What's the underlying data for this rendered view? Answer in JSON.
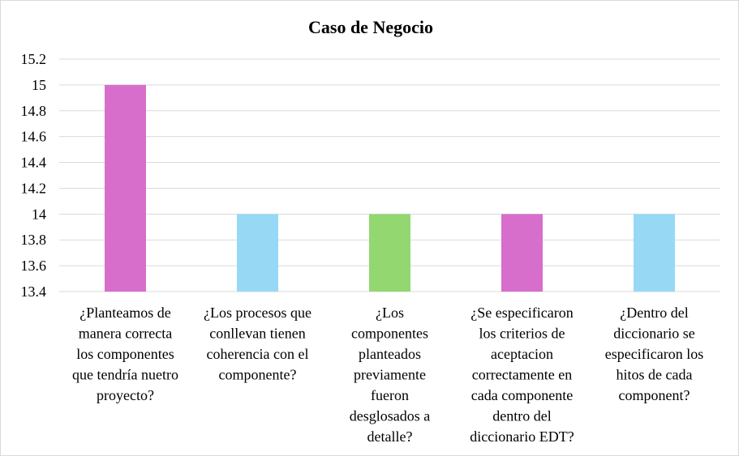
{
  "chart_data": {
    "type": "bar",
    "title": "Caso de Negocio",
    "xlabel": "",
    "ylabel": "",
    "ylim": [
      13.4,
      15.2
    ],
    "yticks": [
      13.4,
      13.6,
      13.8,
      14,
      14.2,
      14.4,
      14.6,
      14.8,
      15,
      15.2
    ],
    "ytick_labels": [
      "13.4",
      "13.6",
      "13.8",
      "14",
      "14.2",
      "14.4",
      "14.6",
      "14.8",
      "15",
      "15.2"
    ],
    "grid": true,
    "legend": "none",
    "categories": [
      [
        "¿Planteamos de",
        "manera correcta",
        "los componentes",
        "que tendría nuetro",
        "proyecto?"
      ],
      [
        "¿Los procesos que",
        "conllevan tienen",
        "coherencia con el",
        "componente?"
      ],
      [
        "¿Los",
        "componentes",
        "planteados",
        "previamente",
        "fueron",
        "desglosados a",
        "detalle?"
      ],
      [
        "¿Se especificaron",
        "los criterios de",
        "aceptacion",
        "correctamente en",
        "cada componente",
        "dentro del",
        "diccionario EDT?"
      ],
      [
        "¿Dentro del",
        "diccionario se",
        "especificaron los",
        "hitos de cada",
        "component?"
      ]
    ],
    "values": [
      15,
      14,
      14,
      14,
      14
    ],
    "bar_colors": [
      "#d86ecc",
      "#97d9f5",
      "#92d76f",
      "#d86ecc",
      "#97d9f5"
    ]
  }
}
